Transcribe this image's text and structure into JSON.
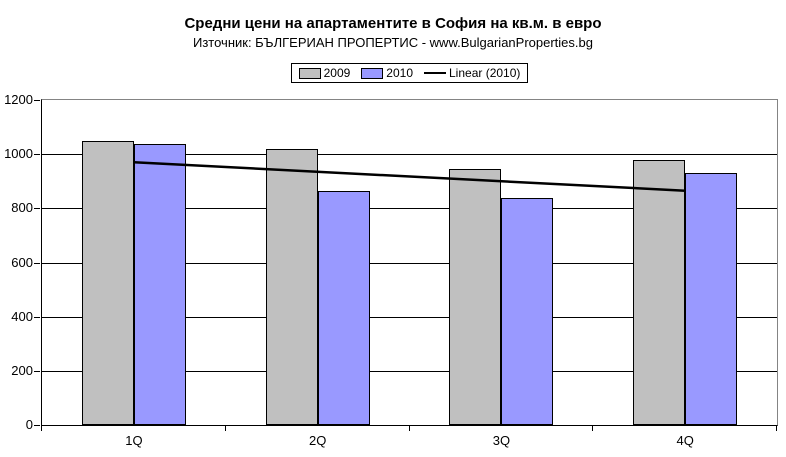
{
  "header": {
    "title": "Средни цени на апартаментите в София на кв.м. в евро",
    "subtitle": "Източник: БЪЛГЕРИАН ПРОПЕРТИС - www.BulgarianProperties.bg"
  },
  "legend": {
    "items": [
      {
        "label": "2009",
        "swatch": "#C0C0C0",
        "kind": "box"
      },
      {
        "label": "2010",
        "swatch": "#9999FF",
        "kind": "box"
      },
      {
        "label": "Linear (2010)",
        "swatch": "#000000",
        "kind": "line"
      }
    ]
  },
  "chart_data": {
    "type": "bar",
    "title": "Средни цени на апартаментите в София на кв.м. в евро",
    "subtitle": "Източник: БЪЛГЕРИАН ПРОПЕРТИС - www.BulgarianProperties.bg",
    "categories": [
      "1Q",
      "2Q",
      "3Q",
      "4Q"
    ],
    "series": [
      {
        "name": "2009",
        "color": "#C0C0C0",
        "values": [
          1050,
          1020,
          945,
          977
        ]
      },
      {
        "name": "2010",
        "color": "#9999FF",
        "values": [
          1038,
          865,
          838,
          930
        ]
      }
    ],
    "trendline": {
      "name": "Linear (2010)",
      "on_series": "2010",
      "color": "#000000",
      "endpoint_values": [
        970,
        865
      ]
    },
    "ylabel": "",
    "xlabel": "",
    "ylim": [
      0,
      1200
    ],
    "yticks": [
      0,
      200,
      400,
      600,
      800,
      1000,
      1200
    ],
    "grid": true,
    "gridline_color": "#000000",
    "plot_border_color": "#848484",
    "legend_position": "top-center"
  }
}
